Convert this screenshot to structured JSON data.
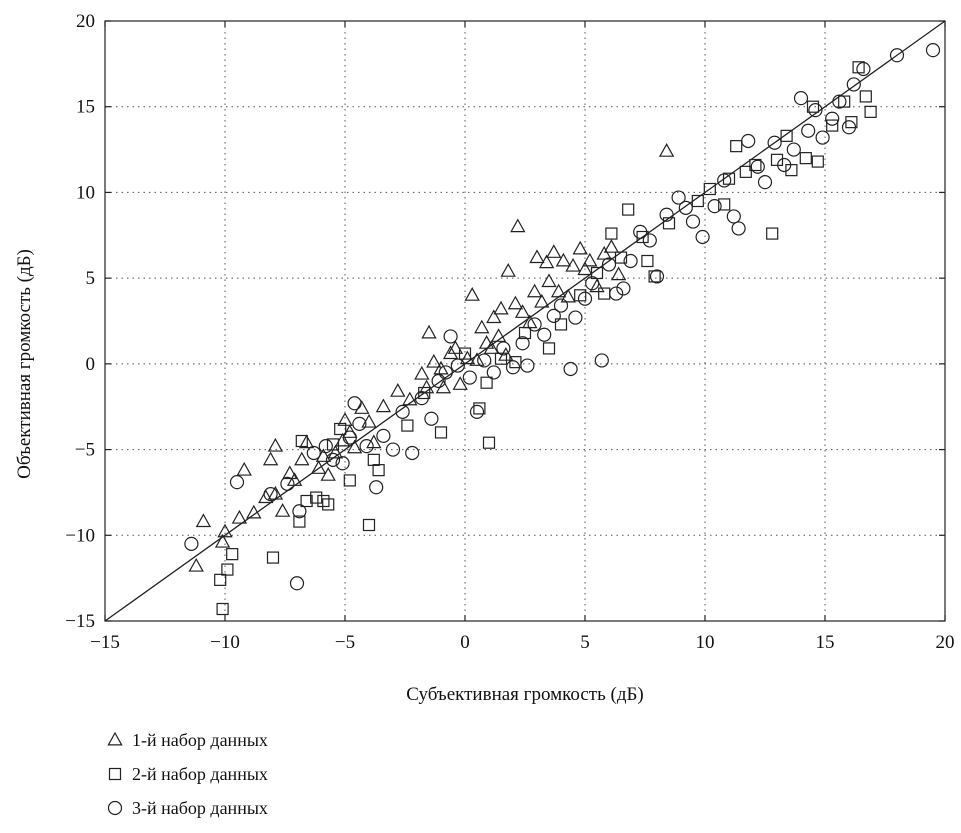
{
  "chart_data": {
    "type": "scatter",
    "xlabel": "Субъективная громкость (дБ)",
    "ylabel": "Объективная громкость (дБ)",
    "xlim": [
      -15,
      20
    ],
    "ylim": [
      -15,
      20
    ],
    "xticks": [
      -15,
      -10,
      -5,
      0,
      5,
      10,
      15,
      20
    ],
    "yticks": [
      -15,
      -10,
      -5,
      0,
      5,
      10,
      15,
      20
    ],
    "xtick_labels": [
      "−15",
      "−10",
      "−5",
      "0",
      "5",
      "10",
      "15",
      "20"
    ],
    "ytick_labels": [
      "−15",
      "−10",
      "−5",
      "0",
      "5",
      "10",
      "15",
      "20"
    ],
    "grid": true,
    "legend_position": "bottom-left, below plot",
    "reference_line": {
      "from": [
        -15,
        -15
      ],
      "to": [
        20,
        20
      ]
    },
    "series": [
      {
        "name": "1-й набор данных",
        "marker": "triangle",
        "points": [
          [
            -11.2,
            -11.8
          ],
          [
            -10.9,
            -9.2
          ],
          [
            -10.1,
            -10.4
          ],
          [
            -10,
            -9.8
          ],
          [
            -9.4,
            -9.0
          ],
          [
            -9.2,
            -6.2
          ],
          [
            -8.8,
            -8.7
          ],
          [
            -8.3,
            -7.8
          ],
          [
            -8.1,
            -5.6
          ],
          [
            -7.9,
            -4.8
          ],
          [
            -7.9,
            -7.6
          ],
          [
            -7.6,
            -8.6
          ],
          [
            -7.3,
            -6.4
          ],
          [
            -7.1,
            -6.8
          ],
          [
            -6.8,
            -5.6
          ],
          [
            -6.6,
            -4.6
          ],
          [
            -6.1,
            -6.1
          ],
          [
            -5.9,
            -5.4
          ],
          [
            -5.7,
            -6.5
          ],
          [
            -5.4,
            -5.2
          ],
          [
            -5.1,
            -4.5
          ],
          [
            -5.0,
            -3.3
          ],
          [
            -4.8,
            -4.0
          ],
          [
            -4.6,
            -4.9
          ],
          [
            -4.3,
            -2.6
          ],
          [
            -4.0,
            -3.4
          ],
          [
            -3.8,
            -4.6
          ],
          [
            -3.4,
            -2.5
          ],
          [
            -2.8,
            -1.6
          ],
          [
            -2.3,
            -2.1
          ],
          [
            -1.8,
            -0.6
          ],
          [
            -1.6,
            -1.4
          ],
          [
            -1.5,
            1.8
          ],
          [
            -1.3,
            0.1
          ],
          [
            -1.0,
            -0.3
          ],
          [
            -0.9,
            -1.4
          ],
          [
            -0.6,
            0.6
          ],
          [
            -0.4,
            0.9
          ],
          [
            -0.2,
            -1.2
          ],
          [
            0.1,
            0.3
          ],
          [
            0.3,
            4.0
          ],
          [
            0.5,
            0.2
          ],
          [
            0.7,
            2.1
          ],
          [
            0.9,
            1.2
          ],
          [
            1.1,
            0.9
          ],
          [
            1.2,
            2.7
          ],
          [
            1.4,
            1.6
          ],
          [
            1.5,
            3.2
          ],
          [
            1.7,
            0.5
          ],
          [
            1.8,
            5.4
          ],
          [
            2.1,
            3.5
          ],
          [
            2.2,
            8.0
          ],
          [
            2.4,
            3.0
          ],
          [
            2.7,
            2.4
          ],
          [
            2.9,
            4.2
          ],
          [
            3.0,
            6.2
          ],
          [
            3.2,
            3.6
          ],
          [
            3.4,
            5.9
          ],
          [
            3.5,
            4.8
          ],
          [
            3.7,
            6.5
          ],
          [
            3.9,
            4.2
          ],
          [
            4.1,
            6.0
          ],
          [
            4.3,
            3.9
          ],
          [
            4.5,
            5.7
          ],
          [
            4.8,
            6.7
          ],
          [
            5.0,
            5.5
          ],
          [
            5.2,
            6.0
          ],
          [
            5.5,
            4.5
          ],
          [
            5.8,
            6.4
          ],
          [
            6.1,
            6.8
          ],
          [
            6.4,
            5.2
          ],
          [
            8.4,
            12.4
          ]
        ]
      },
      {
        "name": "2-й набор данных",
        "marker": "square",
        "points": [
          [
            -10.1,
            -14.3
          ],
          [
            -10.2,
            -12.6
          ],
          [
            -9.9,
            -12.0
          ],
          [
            -9.7,
            -11.1
          ],
          [
            -8.0,
            -11.3
          ],
          [
            -6.9,
            -9.2
          ],
          [
            -6.8,
            -4.5
          ],
          [
            -6.6,
            -8.0
          ],
          [
            -6.2,
            -7.8
          ],
          [
            -5.9,
            -8.0
          ],
          [
            -5.7,
            -8.2
          ],
          [
            -5.5,
            -4.7
          ],
          [
            -5.2,
            -3.8
          ],
          [
            -4.8,
            -6.8
          ],
          [
            -4.0,
            -9.4
          ],
          [
            -3.8,
            -5.6
          ],
          [
            -3.6,
            -6.2
          ],
          [
            -2.4,
            -3.6
          ],
          [
            -1.7,
            -1.7
          ],
          [
            -1.0,
            -4.0
          ],
          [
            0,
            0.6
          ],
          [
            0.6,
            -2.6
          ],
          [
            0.9,
            -1.1
          ],
          [
            1.0,
            -4.6
          ],
          [
            1.5,
            0.3
          ],
          [
            2.1,
            0.1
          ],
          [
            2.5,
            1.8
          ],
          [
            3.5,
            0.9
          ],
          [
            4.0,
            2.3
          ],
          [
            4.8,
            4.0
          ],
          [
            5.5,
            5.3
          ],
          [
            5.8,
            4.1
          ],
          [
            6.1,
            7.6
          ],
          [
            6.5,
            6.2
          ],
          [
            6.8,
            9.0
          ],
          [
            7.4,
            7.4
          ],
          [
            7.6,
            6.0
          ],
          [
            7.9,
            5.1
          ],
          [
            8.5,
            8.2
          ],
          [
            9.7,
            9.5
          ],
          [
            10.2,
            10.2
          ],
          [
            10.8,
            9.3
          ],
          [
            11.0,
            10.8
          ],
          [
            11.3,
            12.7
          ],
          [
            11.7,
            11.2
          ],
          [
            12.1,
            11.6
          ],
          [
            12.8,
            7.6
          ],
          [
            13.0,
            11.9
          ],
          [
            13.4,
            13.3
          ],
          [
            13.6,
            11.3
          ],
          [
            14.2,
            12.0
          ],
          [
            14.5,
            15.0
          ],
          [
            14.7,
            11.8
          ],
          [
            15.3,
            13.9
          ],
          [
            15.8,
            15.3
          ],
          [
            16.1,
            14.1
          ],
          [
            16.4,
            17.3
          ],
          [
            16.7,
            15.6
          ],
          [
            16.9,
            14.7
          ]
        ]
      },
      {
        "name": "3-й набор данных",
        "marker": "circle",
        "points": [
          [
            -11.4,
            -10.5
          ],
          [
            -9.5,
            -6.9
          ],
          [
            -8.1,
            -7.6
          ],
          [
            -7.4,
            -7.0
          ],
          [
            -7.0,
            -12.8
          ],
          [
            -6.9,
            -8.6
          ],
          [
            -6.3,
            -5.2
          ],
          [
            -5.8,
            -4.8
          ],
          [
            -5.5,
            -5.6
          ],
          [
            -5.1,
            -5.8
          ],
          [
            -4.8,
            -4.3
          ],
          [
            -4.6,
            -2.3
          ],
          [
            -4.4,
            -3.5
          ],
          [
            -4.1,
            -4.8
          ],
          [
            -3.7,
            -7.2
          ],
          [
            -3.4,
            -4.2
          ],
          [
            -3.0,
            -5.0
          ],
          [
            -2.6,
            -2.8
          ],
          [
            -2.2,
            -5.2
          ],
          [
            -1.8,
            -2.0
          ],
          [
            -1.4,
            -3.2
          ],
          [
            -1.1,
            -1.0
          ],
          [
            -0.8,
            -0.5
          ],
          [
            -0.6,
            1.6
          ],
          [
            -0.3,
            -0.1
          ],
          [
            0.2,
            -0.8
          ],
          [
            0.5,
            -2.8
          ],
          [
            0.8,
            0.2
          ],
          [
            1.2,
            -0.5
          ],
          [
            1.6,
            0.9
          ],
          [
            2.0,
            -0.2
          ],
          [
            2.4,
            1.2
          ],
          [
            2.6,
            -0.1
          ],
          [
            2.9,
            2.3
          ],
          [
            3.3,
            1.7
          ],
          [
            3.7,
            2.8
          ],
          [
            4.0,
            3.4
          ],
          [
            4.4,
            -0.3
          ],
          [
            4.6,
            2.7
          ],
          [
            5.0,
            3.8
          ],
          [
            5.3,
            4.7
          ],
          [
            5.7,
            0.2
          ],
          [
            6.0,
            5.8
          ],
          [
            6.3,
            4.1
          ],
          [
            6.6,
            4.4
          ],
          [
            6.9,
            6.0
          ],
          [
            7.3,
            7.7
          ],
          [
            7.7,
            7.2
          ],
          [
            8.0,
            5.1
          ],
          [
            8.4,
            8.7
          ],
          [
            8.9,
            9.7
          ],
          [
            9.2,
            9.1
          ],
          [
            9.5,
            8.3
          ],
          [
            9.9,
            7.4
          ],
          [
            10.4,
            9.2
          ],
          [
            10.8,
            10.7
          ],
          [
            11.2,
            8.6
          ],
          [
            11.4,
            7.9
          ],
          [
            11.8,
            13.0
          ],
          [
            12.2,
            11.5
          ],
          [
            12.5,
            10.6
          ],
          [
            12.9,
            12.9
          ],
          [
            13.3,
            11.6
          ],
          [
            13.7,
            12.5
          ],
          [
            14.0,
            15.5
          ],
          [
            14.3,
            13.6
          ],
          [
            14.6,
            14.8
          ],
          [
            14.9,
            13.2
          ],
          [
            15.3,
            14.3
          ],
          [
            15.6,
            15.3
          ],
          [
            16.0,
            13.8
          ],
          [
            16.2,
            16.3
          ],
          [
            16.6,
            17.2
          ],
          [
            18.0,
            18.0
          ],
          [
            19.5,
            18.3
          ]
        ]
      }
    ]
  }
}
